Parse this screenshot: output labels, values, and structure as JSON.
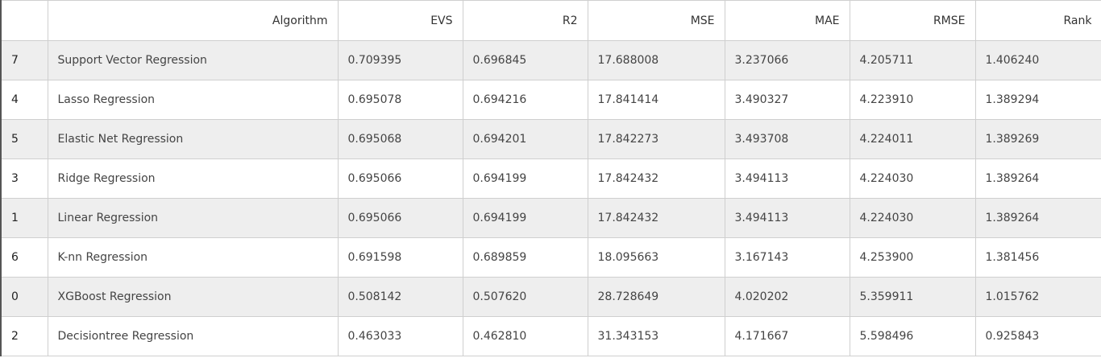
{
  "table": {
    "columns": [
      "",
      "Algorithm",
      "EVS",
      "R2",
      "MSE",
      "MAE",
      "RMSE",
      "Rank"
    ],
    "rows": [
      {
        "index": "7",
        "algorithm": "Support Vector Regression",
        "evs": "0.709395",
        "r2": "0.696845",
        "mse": "17.688008",
        "mae": "3.237066",
        "rmse": "4.205711",
        "rank": "1.406240"
      },
      {
        "index": "4",
        "algorithm": "Lasso Regression",
        "evs": "0.695078",
        "r2": "0.694216",
        "mse": "17.841414",
        "mae": "3.490327",
        "rmse": "4.223910",
        "rank": "1.389294"
      },
      {
        "index": "5",
        "algorithm": "Elastic Net Regression",
        "evs": "0.695068",
        "r2": "0.694201",
        "mse": "17.842273",
        "mae": "3.493708",
        "rmse": "4.224011",
        "rank": "1.389269"
      },
      {
        "index": "3",
        "algorithm": "Ridge Regression",
        "evs": "0.695066",
        "r2": "0.694199",
        "mse": "17.842432",
        "mae": "3.494113",
        "rmse": "4.224030",
        "rank": "1.389264"
      },
      {
        "index": "1",
        "algorithm": "Linear Regression",
        "evs": "0.695066",
        "r2": "0.694199",
        "mse": "17.842432",
        "mae": "3.494113",
        "rmse": "4.224030",
        "rank": "1.389264"
      },
      {
        "index": "6",
        "algorithm": "K-nn Regression",
        "evs": "0.691598",
        "r2": "0.689859",
        "mse": "18.095663",
        "mae": "3.167143",
        "rmse": "4.253900",
        "rank": "1.381456"
      },
      {
        "index": "0",
        "algorithm": "XGBoost Regression",
        "evs": "0.508142",
        "r2": "0.507620",
        "mse": "28.728649",
        "mae": "4.020202",
        "rmse": "5.359911",
        "rank": "1.015762"
      },
      {
        "index": "2",
        "algorithm": "Decisiontree Regression",
        "evs": "0.463033",
        "r2": "0.462810",
        "mse": "31.343153",
        "mae": "4.171667",
        "rmse": "5.598496",
        "rank": "0.925843"
      }
    ]
  }
}
